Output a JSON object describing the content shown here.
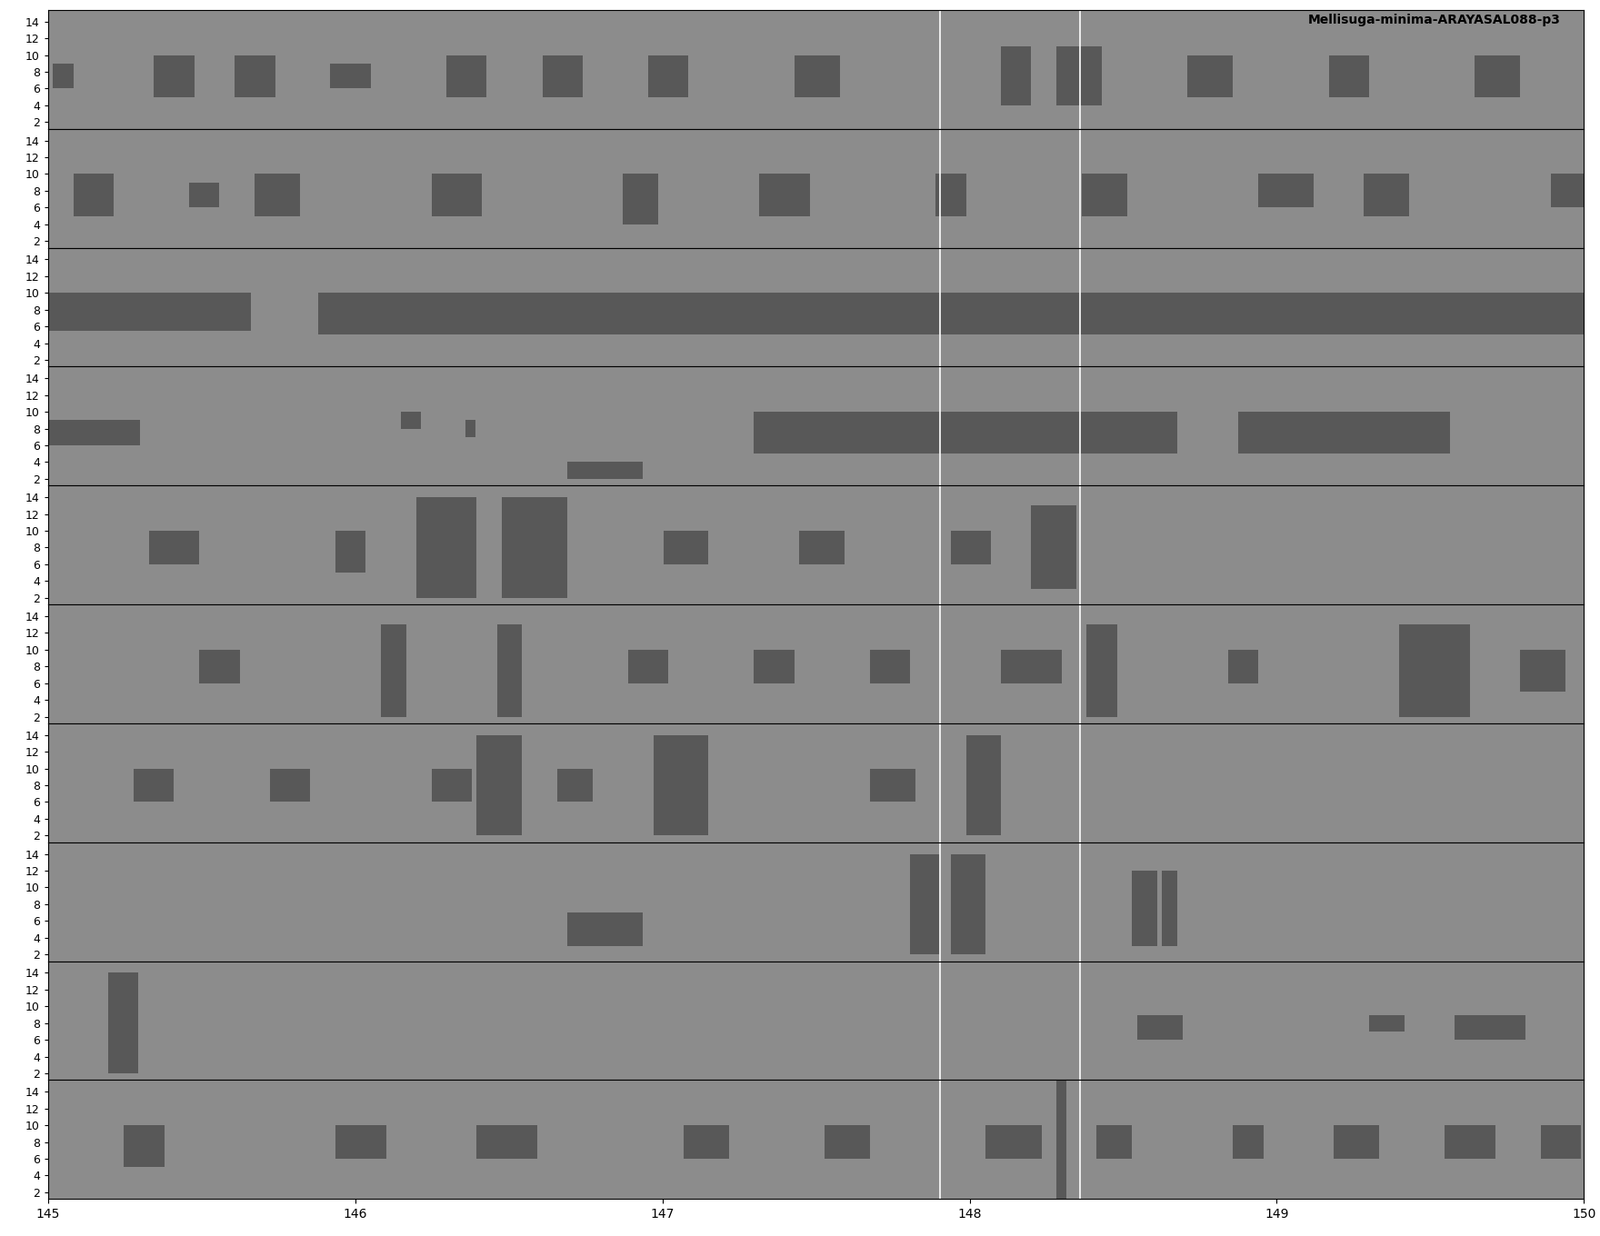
{
  "chart_data": {
    "type": "spectrogram",
    "title": "Mellisuga-minima-ARAYASAL088-p3",
    "xlim": [
      145,
      150
    ],
    "xticks": [
      145,
      146,
      147,
      148,
      149,
      150
    ],
    "ylim": [
      1.2,
      15.4
    ],
    "yticks": [
      2,
      4,
      6,
      8,
      10,
      12,
      14
    ],
    "cursor_lines": [
      147.905,
      148.358
    ],
    "rows": [
      {
        "events": [
          [
            145.016,
            145.082,
            6,
            9
          ],
          [
            145.345,
            145.476,
            5,
            10
          ],
          [
            145.607,
            145.739,
            5,
            10
          ],
          [
            145.919,
            146.051,
            6,
            9
          ],
          [
            146.297,
            146.428,
            5,
            10
          ],
          [
            146.609,
            146.74,
            5,
            10
          ],
          [
            146.954,
            147.085,
            5,
            10
          ],
          [
            147.429,
            147.577,
            5,
            10
          ],
          [
            148.102,
            148.201,
            4,
            11
          ],
          [
            148.283,
            148.431,
            4,
            11
          ],
          [
            148.71,
            148.858,
            5,
            10
          ],
          [
            149.169,
            149.301,
            5,
            10
          ],
          [
            149.645,
            149.793,
            5,
            10
          ]
        ]
      },
      {
        "events": [
          [
            145.082,
            145.213,
            5,
            10
          ],
          [
            145.46,
            145.558,
            6,
            9
          ],
          [
            145.673,
            145.821,
            5,
            10
          ],
          [
            146.248,
            146.412,
            5,
            10
          ],
          [
            146.871,
            146.986,
            4,
            10
          ],
          [
            147.315,
            147.479,
            5,
            10
          ],
          [
            147.889,
            147.988,
            5,
            10
          ],
          [
            148.365,
            148.513,
            5,
            10
          ],
          [
            148.94,
            149.12,
            6,
            10
          ],
          [
            149.284,
            149.432,
            5,
            10
          ],
          [
            149.892,
            150.0,
            6,
            10
          ]
        ]
      },
      {
        "events": [
          [
            145.0,
            145.66,
            5.5,
            10
          ],
          [
            145.88,
            150.0,
            5,
            10
          ]
        ]
      },
      {
        "events": [
          [
            145.0,
            145.3,
            6,
            9
          ],
          [
            146.149,
            146.215,
            8,
            10
          ],
          [
            146.36,
            146.39,
            7,
            9
          ],
          [
            146.691,
            146.937,
            2,
            4
          ],
          [
            147.298,
            148.677,
            5,
            10
          ],
          [
            148.874,
            149.563,
            5,
            10
          ]
        ]
      },
      {
        "events": [
          [
            145.328,
            145.492,
            6,
            10
          ],
          [
            145.936,
            146.034,
            5,
            10
          ],
          [
            146.198,
            146.395,
            2,
            14
          ],
          [
            146.477,
            146.691,
            2,
            14
          ],
          [
            147.003,
            147.15,
            6,
            10
          ],
          [
            147.446,
            147.594,
            6,
            10
          ],
          [
            147.938,
            148.07,
            6,
            10
          ],
          [
            148.201,
            148.349,
            3,
            13
          ]
        ]
      },
      {
        "events": [
          [
            145.492,
            145.624,
            6,
            10
          ],
          [
            146.083,
            146.166,
            2,
            13
          ],
          [
            146.461,
            146.543,
            2,
            13
          ],
          [
            146.888,
            147.019,
            6,
            10
          ],
          [
            147.298,
            147.429,
            6,
            10
          ],
          [
            147.676,
            147.807,
            6,
            10
          ],
          [
            148.102,
            148.299,
            6,
            10
          ],
          [
            148.381,
            148.48,
            2,
            13
          ],
          [
            148.841,
            148.94,
            6,
            10
          ],
          [
            149.399,
            149.629,
            2,
            13
          ],
          [
            149.793,
            149.941,
            5,
            10
          ]
        ]
      },
      {
        "events": [
          [
            145.279,
            145.41,
            6,
            10
          ],
          [
            145.722,
            145.854,
            6,
            10
          ],
          [
            146.248,
            146.379,
            6,
            10
          ],
          [
            146.395,
            146.543,
            2,
            14
          ],
          [
            146.658,
            146.773,
            6,
            10
          ],
          [
            146.97,
            147.15,
            2,
            14
          ],
          [
            147.676,
            147.823,
            6,
            10
          ],
          [
            147.988,
            148.102,
            2,
            14
          ]
        ]
      },
      {
        "events": [
          [
            146.691,
            146.937,
            3,
            7
          ],
          [
            147.807,
            147.905,
            2,
            14
          ],
          [
            147.938,
            148.053,
            2,
            14
          ],
          [
            148.529,
            148.611,
            3,
            12
          ],
          [
            148.627,
            148.677,
            3,
            12
          ]
        ]
      },
      {
        "events": [
          [
            145.197,
            145.295,
            2,
            14
          ],
          [
            148.546,
            148.693,
            6,
            9
          ],
          [
            149.301,
            149.416,
            7,
            9
          ],
          [
            149.58,
            149.81,
            6,
            9
          ]
        ]
      },
      {
        "events": [
          [
            145.246,
            145.378,
            5,
            10
          ],
          [
            145.936,
            146.1,
            6,
            10
          ],
          [
            146.395,
            146.592,
            6,
            10
          ],
          [
            147.068,
            147.216,
            6,
            10
          ],
          [
            147.528,
            147.676,
            6,
            10
          ],
          [
            148.053,
            148.234,
            6,
            10
          ],
          [
            148.283,
            148.316,
            1.2,
            15.4
          ],
          [
            148.414,
            148.529,
            6,
            10
          ],
          [
            148.858,
            148.956,
            6,
            10
          ],
          [
            149.186,
            149.334,
            6,
            10
          ],
          [
            149.547,
            149.711,
            6,
            10
          ],
          [
            149.859,
            149.99,
            6,
            10
          ]
        ]
      }
    ]
  }
}
